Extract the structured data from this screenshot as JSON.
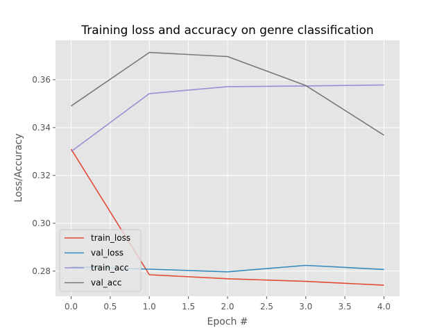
{
  "chart_data": {
    "type": "line",
    "title": "Training loss and accuracy on genre classification",
    "xlabel": "Epoch #",
    "ylabel": "Loss/Accuracy",
    "x": [
      0,
      1,
      2,
      3,
      4
    ],
    "xlim": [
      -0.2,
      4.2
    ],
    "ylim": [
      0.2695,
      0.3765
    ],
    "xticks": [
      0.0,
      0.5,
      1.0,
      1.5,
      2.0,
      2.5,
      3.0,
      3.5,
      4.0
    ],
    "xtick_labels": [
      "0.0",
      "0.5",
      "1.0",
      "1.5",
      "2.0",
      "2.5",
      "3.0",
      "3.5",
      "4.0"
    ],
    "yticks": [
      0.28,
      0.3,
      0.32,
      0.34,
      0.36
    ],
    "ytick_labels": [
      "0.28",
      "0.30",
      "0.32",
      "0.34",
      "0.36"
    ],
    "grid": true,
    "legend_position": "lower-left",
    "style": {
      "plot_background": "#e5e5e5",
      "grid_color": "#ffffff"
    },
    "series": [
      {
        "name": "train_loss",
        "color": "#e24a33",
        "values": [
          0.331,
          0.2785,
          0.2768,
          0.2757,
          0.2741
        ]
      },
      {
        "name": "val_loss",
        "color": "#348abd",
        "values": [
          0.2818,
          0.2808,
          0.2797,
          0.2824,
          0.2807
        ]
      },
      {
        "name": "train_acc",
        "color": "#988ed5",
        "values": [
          0.33,
          0.3542,
          0.3571,
          0.3574,
          0.3578
        ]
      },
      {
        "name": "val_acc",
        "color": "#777777",
        "values": [
          0.349,
          0.3714,
          0.3697,
          0.3576,
          0.3368
        ]
      }
    ]
  }
}
